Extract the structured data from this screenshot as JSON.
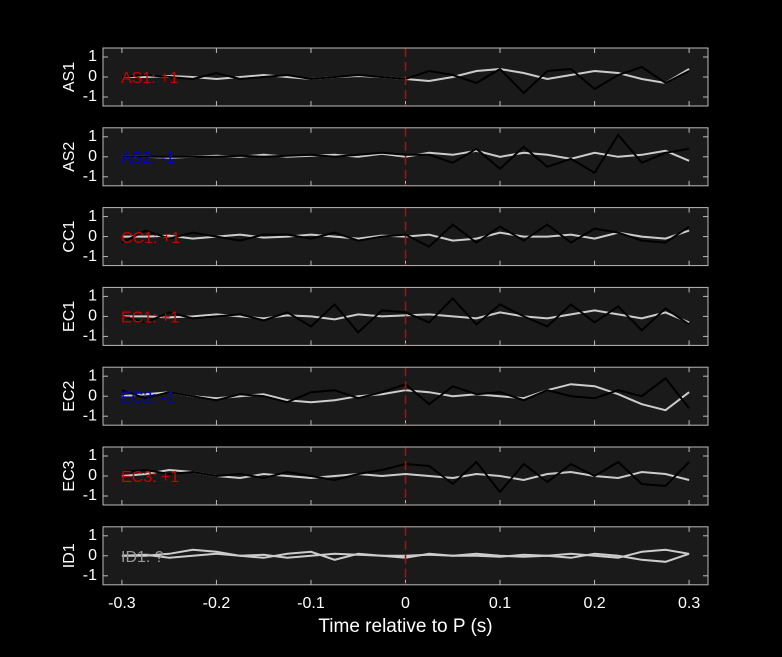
{
  "chart_data": [
    {
      "type": "line",
      "ylabel": "AS1",
      "annotation": "AS1: +1",
      "annotation_color": "#cc0000",
      "vline": 0,
      "vline_color": "#cc0000",
      "xlim": [
        -0.32,
        0.32
      ],
      "ylim": [
        -1.45,
        1.45
      ],
      "xticks": [
        -0.3,
        -0.2,
        -0.1,
        0,
        0.1,
        0.2,
        0.3
      ],
      "yticks": [
        -1,
        0,
        1
      ],
      "x": [
        -0.3,
        -0.275,
        -0.25,
        -0.225,
        -0.2,
        -0.175,
        -0.15,
        -0.125,
        -0.1,
        -0.075,
        -0.05,
        -0.025,
        0,
        0.025,
        0.05,
        0.075,
        0.1,
        0.125,
        0.15,
        0.175,
        0.2,
        0.225,
        0.25,
        0.275,
        0.3
      ],
      "series": [
        {
          "color": "#cccccc",
          "values": [
            0,
            0,
            0.05,
            0,
            -0.1,
            0,
            0.1,
            0,
            -0.1,
            0,
            0.05,
            0,
            -0.1,
            -0.2,
            0,
            0.3,
            0.4,
            0.2,
            -0.1,
            0.1,
            0.3,
            0.2,
            -0.1,
            -0.3,
            0.4
          ]
        },
        {
          "color": "#000000",
          "values": [
            0,
            0.1,
            0,
            -0.1,
            0.2,
            -0.1,
            0,
            0.1,
            -0.1,
            0,
            0.1,
            0,
            -0.1,
            0.3,
            0.1,
            -0.3,
            0.4,
            -0.8,
            0.3,
            0.4,
            -0.6,
            0.1,
            0.5,
            -0.3,
            0.3
          ]
        }
      ]
    },
    {
      "type": "line",
      "ylabel": "AS2",
      "annotation": "AS2: -1",
      "annotation_color": "#0000cc",
      "vline": 0,
      "vline_color": "#cc0000",
      "xlim": [
        -0.32,
        0.32
      ],
      "ylim": [
        -1.45,
        1.45
      ],
      "xticks": [
        -0.3,
        -0.2,
        -0.1,
        0,
        0.1,
        0.2,
        0.3
      ],
      "yticks": [
        -1,
        0,
        1
      ],
      "x": [
        -0.3,
        -0.275,
        -0.25,
        -0.225,
        -0.2,
        -0.175,
        -0.15,
        -0.125,
        -0.1,
        -0.075,
        -0.05,
        -0.025,
        0,
        0.025,
        0.05,
        0.075,
        0.1,
        0.125,
        0.15,
        0.175,
        0.2,
        0.225,
        0.25,
        0.275,
        0.3
      ],
      "series": [
        {
          "color": "#cccccc",
          "values": [
            0,
            0,
            -0.05,
            0,
            0.05,
            0,
            0.1,
            0,
            0.05,
            0.1,
            0,
            0.15,
            0,
            0.2,
            0.1,
            0.3,
            0,
            0.2,
            0.1,
            -0.1,
            0.2,
            0,
            0.1,
            0.3,
            -0.2
          ]
        },
        {
          "color": "#000000",
          "values": [
            0,
            0,
            0,
            0,
            0,
            0.05,
            0,
            0.05,
            0.1,
            0,
            0.1,
            0.2,
            0.1,
            0.1,
            -0.3,
            0.4,
            -0.6,
            0.5,
            -0.5,
            -0.1,
            -0.8,
            1.1,
            -0.3,
            0.2,
            0.4
          ]
        }
      ]
    },
    {
      "type": "line",
      "ylabel": "CC1",
      "annotation": "CC1: +1",
      "annotation_color": "#cc0000",
      "vline": 0,
      "vline_color": "#cc0000",
      "xlim": [
        -0.32,
        0.32
      ],
      "ylim": [
        -1.45,
        1.45
      ],
      "xticks": [
        -0.3,
        -0.2,
        -0.1,
        0,
        0.1,
        0.2,
        0.3
      ],
      "yticks": [
        -1,
        0,
        1
      ],
      "x": [
        -0.3,
        -0.275,
        -0.25,
        -0.225,
        -0.2,
        -0.175,
        -0.15,
        -0.125,
        -0.1,
        -0.075,
        -0.05,
        -0.025,
        0,
        0.025,
        0.05,
        0.075,
        0.1,
        0.125,
        0.15,
        0.175,
        0.2,
        0.225,
        0.25,
        0.275,
        0.3
      ],
      "series": [
        {
          "color": "#cccccc",
          "values": [
            0,
            0,
            0.05,
            -0.1,
            0,
            0.1,
            -0.05,
            0,
            0.1,
            0,
            -0.1,
            0.05,
            0,
            0.1,
            -0.2,
            -0.1,
            0.2,
            0,
            0,
            0.1,
            -0.1,
            0.2,
            0,
            -0.1,
            0.3
          ]
        },
        {
          "color": "#000000",
          "values": [
            -0.3,
            0.3,
            -0.1,
            0.2,
            0,
            -0.2,
            0.1,
            0.1,
            -0.1,
            0.2,
            -0.2,
            0,
            0.1,
            -0.5,
            0.6,
            -0.3,
            0.5,
            -0.2,
            0.6,
            -0.3,
            0.4,
            0.2,
            -0.2,
            -0.3,
            0.5
          ]
        }
      ]
    },
    {
      "type": "line",
      "ylabel": "EC1",
      "annotation": "EC1: +1",
      "annotation_color": "#cc0000",
      "vline": 0,
      "vline_color": "#cc0000",
      "xlim": [
        -0.32,
        0.32
      ],
      "ylim": [
        -1.45,
        1.45
      ],
      "xticks": [
        -0.3,
        -0.2,
        -0.1,
        0,
        0.1,
        0.2,
        0.3
      ],
      "yticks": [
        -1,
        0,
        1
      ],
      "x": [
        -0.3,
        -0.275,
        -0.25,
        -0.225,
        -0.2,
        -0.175,
        -0.15,
        -0.125,
        -0.1,
        -0.075,
        -0.05,
        -0.025,
        0,
        0.025,
        0.05,
        0.075,
        0.1,
        0.125,
        0.15,
        0.175,
        0.2,
        0.225,
        0.25,
        0.275,
        0.3
      ],
      "series": [
        {
          "color": "#cccccc",
          "values": [
            0,
            0,
            -0.05,
            0,
            0.1,
            0,
            -0.1,
            0.05,
            0,
            -0.15,
            0.1,
            0,
            0.05,
            0.1,
            0,
            -0.1,
            0.2,
            0,
            -0.1,
            0.1,
            0.3,
            0.1,
            -0.1,
            0.2,
            -0.3
          ]
        },
        {
          "color": "#000000",
          "values": [
            0,
            -0.3,
            0.2,
            -0.1,
            0,
            0.1,
            -0.2,
            0.2,
            -0.5,
            0.6,
            -0.8,
            0.3,
            0.2,
            -0.3,
            0.9,
            -0.4,
            0.6,
            0,
            -0.5,
            0.6,
            -0.3,
            0.5,
            -0.7,
            0.4,
            -0.4
          ]
        }
      ]
    },
    {
      "type": "line",
      "ylabel": "EC2",
      "annotation": "EC2: -1",
      "annotation_color": "#0000cc",
      "vline": 0,
      "vline_color": "#cc0000",
      "xlim": [
        -0.32,
        0.32
      ],
      "ylim": [
        -1.45,
        1.45
      ],
      "xticks": [
        -0.3,
        -0.2,
        -0.1,
        0,
        0.1,
        0.2,
        0.3
      ],
      "yticks": [
        -1,
        0,
        1
      ],
      "x": [
        -0.3,
        -0.275,
        -0.25,
        -0.225,
        -0.2,
        -0.175,
        -0.15,
        -0.125,
        -0.1,
        -0.075,
        -0.05,
        -0.025,
        0,
        0.025,
        0.05,
        0.075,
        0.1,
        0.125,
        0.15,
        0.175,
        0.2,
        0.225,
        0.25,
        0.275,
        0.3
      ],
      "series": [
        {
          "color": "#cccccc",
          "values": [
            0,
            0.1,
            0.2,
            0,
            -0.1,
            0,
            0.1,
            -0.2,
            -0.3,
            -0.2,
            0,
            0.1,
            0.3,
            0.2,
            0,
            0.1,
            0,
            -0.1,
            0.3,
            0.6,
            0.5,
            0.1,
            -0.4,
            -0.7,
            0.2
          ]
        },
        {
          "color": "#000000",
          "values": [
            0.3,
            -0.1,
            0.2,
            0,
            -0.2,
            0.1,
            0,
            -0.3,
            0.2,
            0.3,
            -0.1,
            0.2,
            0.6,
            -0.4,
            0.5,
            0.1,
            0.2,
            -0.2,
            0.3,
            0,
            -0.1,
            0.3,
            0,
            0.9,
            -0.6
          ]
        }
      ]
    },
    {
      "type": "line",
      "ylabel": "EC3",
      "annotation": "EC3: +1",
      "annotation_color": "#cc0000",
      "vline": 0,
      "vline_color": "#cc0000",
      "xlim": [
        -0.32,
        0.32
      ],
      "ylim": [
        -1.45,
        1.45
      ],
      "xticks": [
        -0.3,
        -0.2,
        -0.1,
        0,
        0.1,
        0.2,
        0.3
      ],
      "yticks": [
        -1,
        0,
        1
      ],
      "x": [
        -0.3,
        -0.275,
        -0.25,
        -0.225,
        -0.2,
        -0.175,
        -0.15,
        -0.125,
        -0.1,
        -0.075,
        -0.05,
        -0.025,
        0,
        0.025,
        0.05,
        0.075,
        0.1,
        0.125,
        0.15,
        0.175,
        0.2,
        0.225,
        0.25,
        0.275,
        0.3
      ],
      "series": [
        {
          "color": "#cccccc",
          "values": [
            0,
            0.1,
            0.3,
            0.2,
            0,
            -0.1,
            0.1,
            0,
            -0.1,
            0,
            0.1,
            0,
            0.1,
            0,
            -0.1,
            0.1,
            0,
            -0.2,
            0.1,
            0.2,
            0,
            -0.1,
            0.2,
            0.1,
            -0.2
          ]
        },
        {
          "color": "#000000",
          "values": [
            0.2,
            0.3,
            0.1,
            0.2,
            0,
            0.1,
            -0.1,
            0.2,
            0,
            -0.2,
            0.1,
            0.3,
            0.6,
            0.5,
            -0.4,
            0.7,
            -0.8,
            0.6,
            -0.3,
            0.6,
            0,
            0.7,
            -0.4,
            -0.5,
            0.7
          ]
        }
      ]
    },
    {
      "type": "line",
      "ylabel": "ID1",
      "annotation": "ID1: ?",
      "annotation_color": "#999999",
      "vline": 0,
      "vline_color": "#cc0000",
      "xlim": [
        -0.32,
        0.32
      ],
      "ylim": [
        -1.45,
        1.45
      ],
      "xticks": [
        -0.3,
        -0.2,
        -0.1,
        0,
        0.1,
        0.2,
        0.3
      ],
      "yticks": [
        -1,
        0,
        1
      ],
      "xlabel": "Time relative to P (s)",
      "x": [
        -0.3,
        -0.275,
        -0.25,
        -0.225,
        -0.2,
        -0.175,
        -0.15,
        -0.125,
        -0.1,
        -0.075,
        -0.05,
        -0.025,
        0,
        0.025,
        0.05,
        0.075,
        0.1,
        0.125,
        0.15,
        0.175,
        0.2,
        0.225,
        0.25,
        0.275,
        0.3
      ],
      "series": [
        {
          "color": "#cccccc",
          "values": [
            0,
            0,
            0.1,
            0.3,
            0.2,
            0,
            -0.1,
            0.1,
            0.2,
            -0.2,
            0.1,
            0,
            -0.1,
            0.1,
            0,
            0,
            -0.05,
            0.05,
            0,
            0.1,
            0,
            -0.1,
            0.2,
            0.3,
            0.1
          ]
        },
        {
          "color": "#cccccc",
          "values": [
            0,
            0.05,
            -0.1,
            0,
            0.1,
            0,
            0.05,
            -0.1,
            0,
            0.1,
            0.05,
            0,
            0,
            0.05,
            0,
            0.1,
            0,
            -0.05,
            0,
            -0.1,
            0.1,
            0,
            -0.2,
            -0.3,
            0.1
          ]
        }
      ]
    }
  ]
}
